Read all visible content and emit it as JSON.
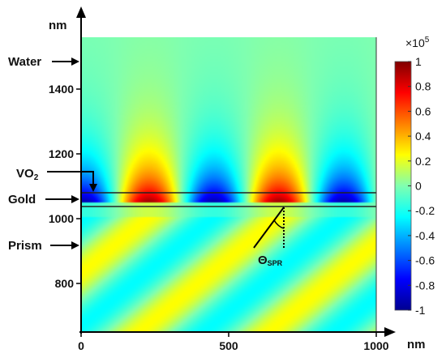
{
  "chart_data": {
    "type": "heatmap",
    "title": "",
    "xlabel": "nm",
    "ylabel": "nm",
    "xlim": [
      0,
      1000
    ],
    "ylim": [
      650,
      1560
    ],
    "x_ticks": [
      "0",
      "500",
      "1000"
    ],
    "x_tick_values": [
      0,
      500,
      1000
    ],
    "y_ticks": [
      "800",
      "1000",
      "1200",
      "1400"
    ],
    "y_tick_values": [
      800,
      1000,
      1200,
      1400
    ],
    "layers": [
      {
        "name": "Water",
        "y_range": [
          1055,
          1560
        ]
      },
      {
        "name": "VO2",
        "y_range": [
          1050,
          1055
        ]
      },
      {
        "name": "Gold",
        "y_range": [
          1005,
          1050
        ]
      },
      {
        "name": "Prism",
        "y_range": [
          650,
          1005
        ]
      }
    ],
    "layer_labels": {
      "water": "Water",
      "vo2_main": "VO",
      "vo2_sub": "2",
      "gold": "Gold",
      "prism": "Prism"
    },
    "angle_label": {
      "main": "Θ",
      "sub": "SPR"
    },
    "field_pattern": {
      "period_nm": 440,
      "phase_peak_x_nm": 230,
      "upper_decay_nm": 120,
      "lower_amplitude": 0.25
    },
    "colorbar": {
      "exponent_label": "×10",
      "exponent_power": "5",
      "min": -1,
      "max": 1,
      "ticks": [
        "1",
        "0.8",
        "0.6",
        "0.4",
        "0.2",
        "0",
        "-0.2",
        "-0.4",
        "-0.6",
        "-0.8",
        "-1"
      ],
      "tick_values": [
        1,
        0.8,
        0.6,
        0.4,
        0.2,
        0,
        -0.2,
        -0.4,
        -0.6,
        -0.8,
        -1
      ],
      "colormap": "jet"
    }
  }
}
